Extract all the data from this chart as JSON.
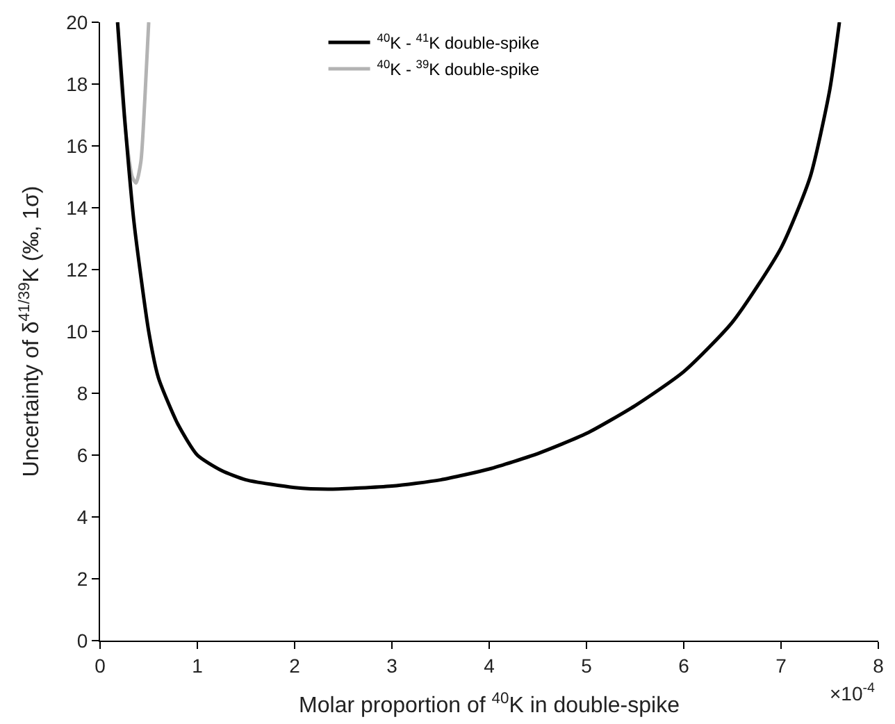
{
  "chart_data": {
    "type": "line",
    "xlabel": "Molar proportion of $^{40}$K in double-spike",
    "ylabel": "Uncertainty of δ$^{41/39}$K (‰, 1σ)",
    "annotations": [
      "×10$^{-4}$"
    ],
    "series": [
      {
        "name": "$^{40}$K - $^{41}$K double-spike",
        "color": "#000000",
        "x": [
          0.18,
          0.25,
          0.35,
          0.5,
          0.6,
          0.8,
          1.0,
          1.25,
          1.5,
          2.0,
          2.35,
          3.0,
          3.5,
          4.0,
          4.5,
          5.0,
          5.5,
          6.0,
          6.5,
          7.0,
          7.3,
          7.5,
          7.6
        ],
        "values": [
          20,
          17,
          13.5,
          10,
          8.5,
          7,
          6.0,
          5.5,
          5.2,
          4.95,
          4.9,
          5.0,
          5.2,
          5.55,
          6.05,
          6.7,
          7.6,
          8.7,
          10.3,
          12.7,
          15,
          17.8,
          20
        ]
      },
      {
        "name": "$^{40}$K - $^{39}$K double-spike",
        "color": "#b3b3b3",
        "x": [
          0.18,
          0.22,
          0.28,
          0.33,
          0.37,
          0.42,
          0.46,
          0.5
        ],
        "values": [
          20,
          18,
          16,
          15.0,
          14.8,
          15.5,
          17.5,
          20
        ]
      }
    ],
    "xlim": [
      0,
      8
    ],
    "xticks": [
      0,
      1,
      2,
      3,
      4,
      5,
      6,
      7,
      8
    ],
    "ylim": [
      0,
      20
    ],
    "yticks": [
      0,
      2,
      4,
      6,
      8,
      10,
      12,
      14,
      16,
      18,
      20
    ],
    "legend": "top",
    "marker": "none",
    "line_style": "solid"
  }
}
